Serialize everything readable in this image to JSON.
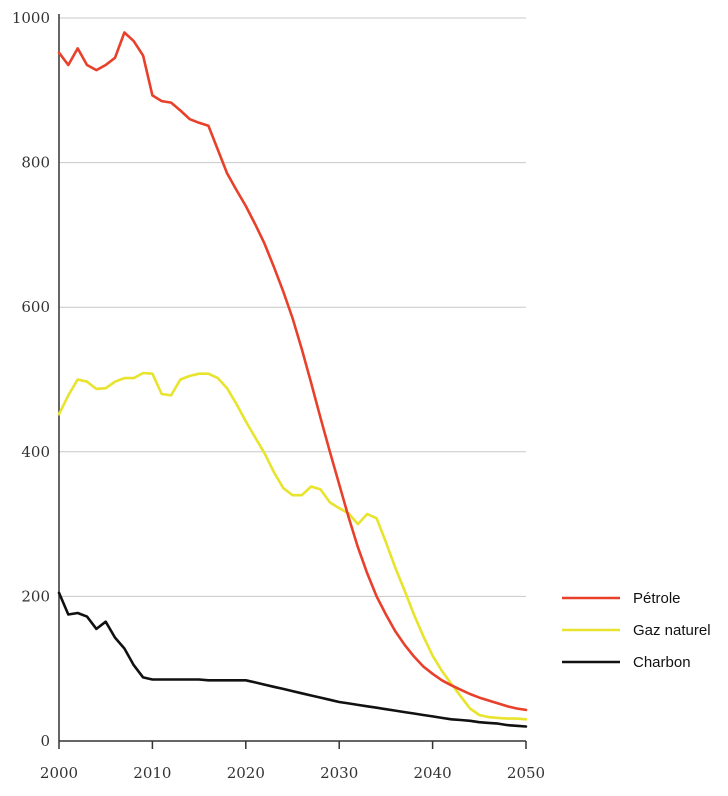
{
  "chart_data": {
    "type": "line",
    "title": "",
    "xlabel": "",
    "ylabel": "",
    "xlim": [
      2000,
      2050
    ],
    "ylim": [
      0,
      1000
    ],
    "x_ticks": [
      2000,
      2010,
      2020,
      2030,
      2040,
      2050
    ],
    "y_ticks": [
      0,
      200,
      400,
      600,
      800,
      1000
    ],
    "grid": "horizontal",
    "legend_position": "right",
    "series": [
      {
        "name": "Pétrole",
        "color": "#e8402a",
        "points": [
          [
            2000,
            952
          ],
          [
            2001,
            935
          ],
          [
            2002,
            958
          ],
          [
            2003,
            935
          ],
          [
            2004,
            928
          ],
          [
            2005,
            935
          ],
          [
            2006,
            945
          ],
          [
            2007,
            980
          ],
          [
            2008,
            968
          ],
          [
            2009,
            948
          ],
          [
            2010,
            893
          ],
          [
            2011,
            885
          ],
          [
            2012,
            883
          ],
          [
            2013,
            872
          ],
          [
            2014,
            860
          ],
          [
            2015,
            855
          ],
          [
            2016,
            851
          ],
          [
            2017,
            818
          ],
          [
            2018,
            785
          ],
          [
            2019,
            762
          ],
          [
            2020,
            740
          ],
          [
            2021,
            715
          ],
          [
            2022,
            688
          ],
          [
            2023,
            656
          ],
          [
            2024,
            622
          ],
          [
            2025,
            585
          ],
          [
            2026,
            542
          ],
          [
            2027,
            495
          ],
          [
            2028,
            447
          ],
          [
            2029,
            400
          ],
          [
            2030,
            355
          ],
          [
            2031,
            310
          ],
          [
            2032,
            268
          ],
          [
            2033,
            232
          ],
          [
            2034,
            200
          ],
          [
            2035,
            175
          ],
          [
            2036,
            152
          ],
          [
            2037,
            133
          ],
          [
            2038,
            117
          ],
          [
            2039,
            103
          ],
          [
            2040,
            93
          ],
          [
            2041,
            84
          ],
          [
            2042,
            77
          ],
          [
            2043,
            71
          ],
          [
            2044,
            65
          ],
          [
            2045,
            60
          ],
          [
            2046,
            56
          ],
          [
            2047,
            52
          ],
          [
            2048,
            48
          ],
          [
            2049,
            45
          ],
          [
            2050,
            43
          ]
        ]
      },
      {
        "name": "Gaz naturel",
        "color": "#e8e32c",
        "points": [
          [
            2000,
            452
          ],
          [
            2001,
            478
          ],
          [
            2002,
            500
          ],
          [
            2003,
            497
          ],
          [
            2004,
            487
          ],
          [
            2005,
            488
          ],
          [
            2006,
            497
          ],
          [
            2007,
            502
          ],
          [
            2008,
            502
          ],
          [
            2009,
            509
          ],
          [
            2010,
            508
          ],
          [
            2011,
            480
          ],
          [
            2012,
            478
          ],
          [
            2013,
            500
          ],
          [
            2014,
            505
          ],
          [
            2015,
            508
          ],
          [
            2016,
            508
          ],
          [
            2017,
            502
          ],
          [
            2018,
            488
          ],
          [
            2019,
            466
          ],
          [
            2020,
            442
          ],
          [
            2021,
            420
          ],
          [
            2022,
            398
          ],
          [
            2023,
            372
          ],
          [
            2024,
            350
          ],
          [
            2025,
            340
          ],
          [
            2026,
            340
          ],
          [
            2027,
            352
          ],
          [
            2028,
            348
          ],
          [
            2029,
            330
          ],
          [
            2030,
            322
          ],
          [
            2031,
            315
          ],
          [
            2032,
            300
          ],
          [
            2033,
            314
          ],
          [
            2034,
            308
          ],
          [
            2035,
            275
          ],
          [
            2036,
            240
          ],
          [
            2037,
            208
          ],
          [
            2038,
            175
          ],
          [
            2039,
            145
          ],
          [
            2040,
            118
          ],
          [
            2041,
            97
          ],
          [
            2042,
            79
          ],
          [
            2043,
            62
          ],
          [
            2044,
            45
          ],
          [
            2045,
            36
          ],
          [
            2046,
            33
          ],
          [
            2047,
            32
          ],
          [
            2048,
            31
          ],
          [
            2049,
            31
          ],
          [
            2050,
            30
          ]
        ]
      },
      {
        "name": "Charbon",
        "color": "#111111",
        "points": [
          [
            2000,
            205
          ],
          [
            2001,
            175
          ],
          [
            2002,
            177
          ],
          [
            2003,
            172
          ],
          [
            2004,
            155
          ],
          [
            2005,
            165
          ],
          [
            2006,
            143
          ],
          [
            2007,
            128
          ],
          [
            2008,
            105
          ],
          [
            2009,
            88
          ],
          [
            2010,
            85
          ],
          [
            2011,
            85
          ],
          [
            2012,
            85
          ],
          [
            2013,
            85
          ],
          [
            2014,
            85
          ],
          [
            2015,
            85
          ],
          [
            2016,
            84
          ],
          [
            2017,
            84
          ],
          [
            2018,
            84
          ],
          [
            2019,
            84
          ],
          [
            2020,
            84
          ],
          [
            2021,
            81
          ],
          [
            2022,
            78
          ],
          [
            2023,
            75
          ],
          [
            2024,
            72
          ],
          [
            2025,
            69
          ],
          [
            2026,
            66
          ],
          [
            2027,
            63
          ],
          [
            2028,
            60
          ],
          [
            2029,
            57
          ],
          [
            2030,
            54
          ],
          [
            2031,
            52
          ],
          [
            2032,
            50
          ],
          [
            2033,
            48
          ],
          [
            2034,
            46
          ],
          [
            2035,
            44
          ],
          [
            2036,
            42
          ],
          [
            2037,
            40
          ],
          [
            2038,
            38
          ],
          [
            2039,
            36
          ],
          [
            2040,
            34
          ],
          [
            2041,
            32
          ],
          [
            2042,
            30
          ],
          [
            2043,
            29
          ],
          [
            2044,
            28
          ],
          [
            2045,
            26
          ],
          [
            2046,
            25
          ],
          [
            2047,
            24
          ],
          [
            2048,
            22
          ],
          [
            2049,
            21
          ],
          [
            2050,
            20
          ]
        ]
      }
    ]
  }
}
